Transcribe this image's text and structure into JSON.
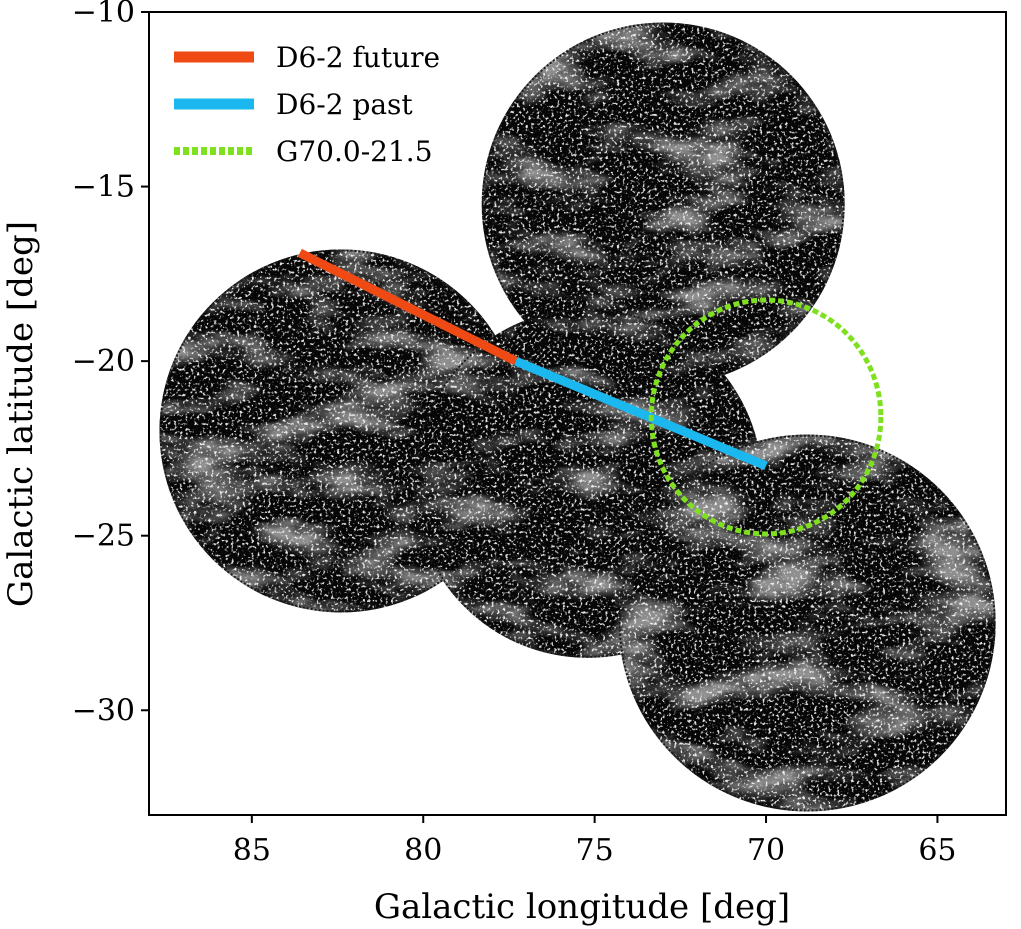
{
  "chart_data": {
    "type": "scatter",
    "title": "",
    "xlabel": "Galactic longitude [deg]",
    "ylabel": "Galactic latitude [deg]",
    "xlim": [
      88,
      63
    ],
    "ylim": [
      -33,
      -10
    ],
    "x_inverted": true,
    "xticks": [
      85,
      80,
      75,
      70,
      65
    ],
    "yticks": [
      -10,
      -15,
      -20,
      -25,
      -30
    ],
    "xtick_labels": [
      "85",
      "80",
      "75",
      "70",
      "65"
    ],
    "ytick_labels": [
      "−10",
      "−15",
      "−20",
      "−25",
      "−30"
    ],
    "grid": false,
    "legend_position": "top-left",
    "background_image": {
      "description_type": "grayscale-intensity-map",
      "fields": [
        {
          "center_l": 82.4,
          "center_b": -22.0,
          "radius_deg": 5.2
        },
        {
          "center_l": 73.0,
          "center_b": -15.5,
          "radius_deg": 5.2
        },
        {
          "center_l": 75.2,
          "center_b": -23.5,
          "radius_deg": 5.0
        },
        {
          "center_l": 68.8,
          "center_b": -27.5,
          "radius_deg": 5.4
        }
      ]
    },
    "series": [
      {
        "name": "D6-2 future",
        "type": "line",
        "color": "#f04a14",
        "x": [
          83.6,
          77.3
        ],
        "y": [
          -16.9,
          -20.0
        ]
      },
      {
        "name": "D6-2 past",
        "type": "line",
        "color": "#1ab8ee",
        "x": [
          77.3,
          70.0
        ],
        "y": [
          -20.0,
          -23.0
        ]
      },
      {
        "name": "G70.0-21.5",
        "type": "circle",
        "color": "#7fe020",
        "style": "dotted",
        "center": [
          70.0,
          -21.6
        ],
        "radius_deg": 3.35
      }
    ]
  }
}
